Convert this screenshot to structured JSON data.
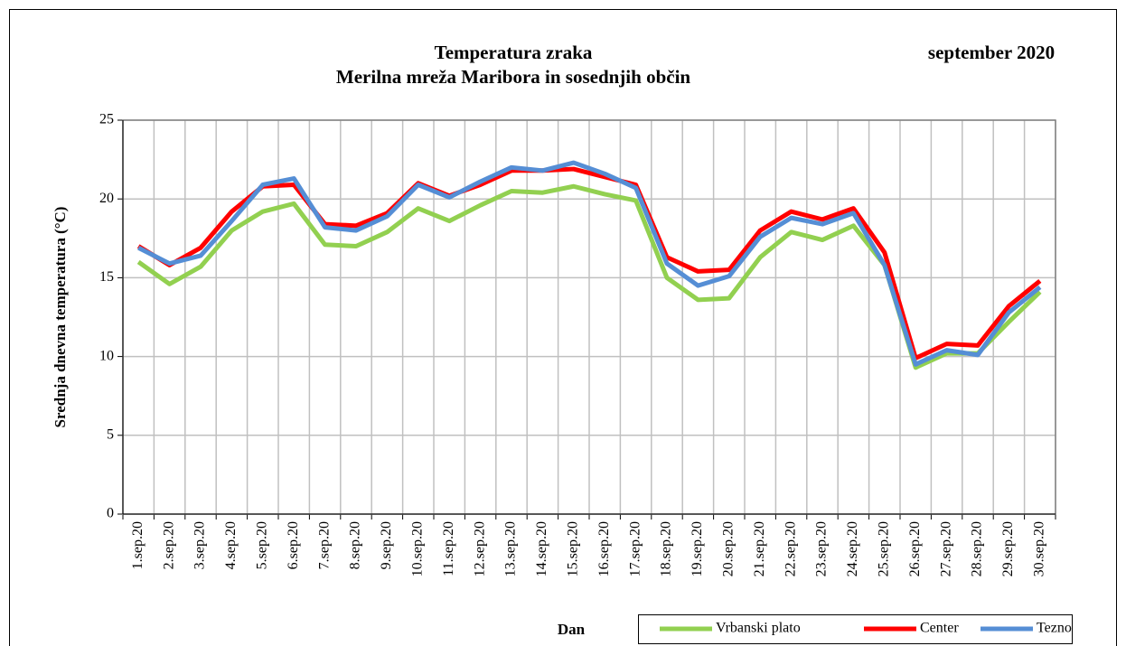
{
  "chart_data": {
    "type": "line",
    "title": "Temperatura zraka",
    "subtitle": "Merilna mreža Maribora in sosednjih občin",
    "period": "september 2020",
    "x_label": "Dan",
    "y_label": "Srednja dnevna temperatura (°C)",
    "categories": [
      "1.sep.20",
      "2.sep.20",
      "3.sep.20",
      "4.sep.20",
      "5.sep.20",
      "6.sep.20",
      "7.sep.20",
      "8.sep.20",
      "9.sep.20",
      "10.sep.20",
      "11.sep.20",
      "12.sep.20",
      "13.sep.20",
      "14.sep.20",
      "15.sep.20",
      "16.sep.20",
      "17.sep.20",
      "18.sep.20",
      "19.sep.20",
      "20.sep.20",
      "21.sep.20",
      "22.sep.20",
      "23.sep.20",
      "24.sep.20",
      "25.sep.20",
      "26.sep.20",
      "27.sep.20",
      "28.sep.20",
      "29.sep.20",
      "30.sep.20"
    ],
    "series": [
      {
        "name": "Vrbanski plato",
        "color": "#92d050",
        "values": [
          16.0,
          14.6,
          15.7,
          18.0,
          19.2,
          19.7,
          17.1,
          17.0,
          17.9,
          19.4,
          18.6,
          19.6,
          20.5,
          20.4,
          20.8,
          20.3,
          19.9,
          15.0,
          13.6,
          13.7,
          16.3,
          17.9,
          17.4,
          18.3,
          15.8,
          9.3,
          10.2,
          10.2,
          12.2,
          14.1
        ]
      },
      {
        "name": "Center",
        "color": "#ff0000",
        "values": [
          17.0,
          15.8,
          16.9,
          19.2,
          20.8,
          20.9,
          18.4,
          18.3,
          19.1,
          21.0,
          20.2,
          20.9,
          21.8,
          21.8,
          21.9,
          21.4,
          20.9,
          16.3,
          15.4,
          15.5,
          18.0,
          19.2,
          18.7,
          19.4,
          16.6,
          9.9,
          10.8,
          10.7,
          13.2,
          14.8
        ]
      },
      {
        "name": "Tezno",
        "color": "#558ed5",
        "values": [
          16.9,
          15.9,
          16.4,
          18.6,
          20.9,
          21.3,
          18.2,
          18.0,
          18.9,
          20.9,
          20.1,
          21.1,
          22.0,
          21.8,
          22.3,
          21.6,
          20.7,
          15.9,
          14.5,
          15.1,
          17.6,
          18.8,
          18.4,
          19.1,
          15.8,
          9.5,
          10.4,
          10.1,
          12.8,
          14.4
        ]
      }
    ],
    "ylim": [
      0,
      25
    ],
    "yticks": [
      0,
      5,
      10,
      15,
      20,
      25
    ],
    "grid": true
  }
}
